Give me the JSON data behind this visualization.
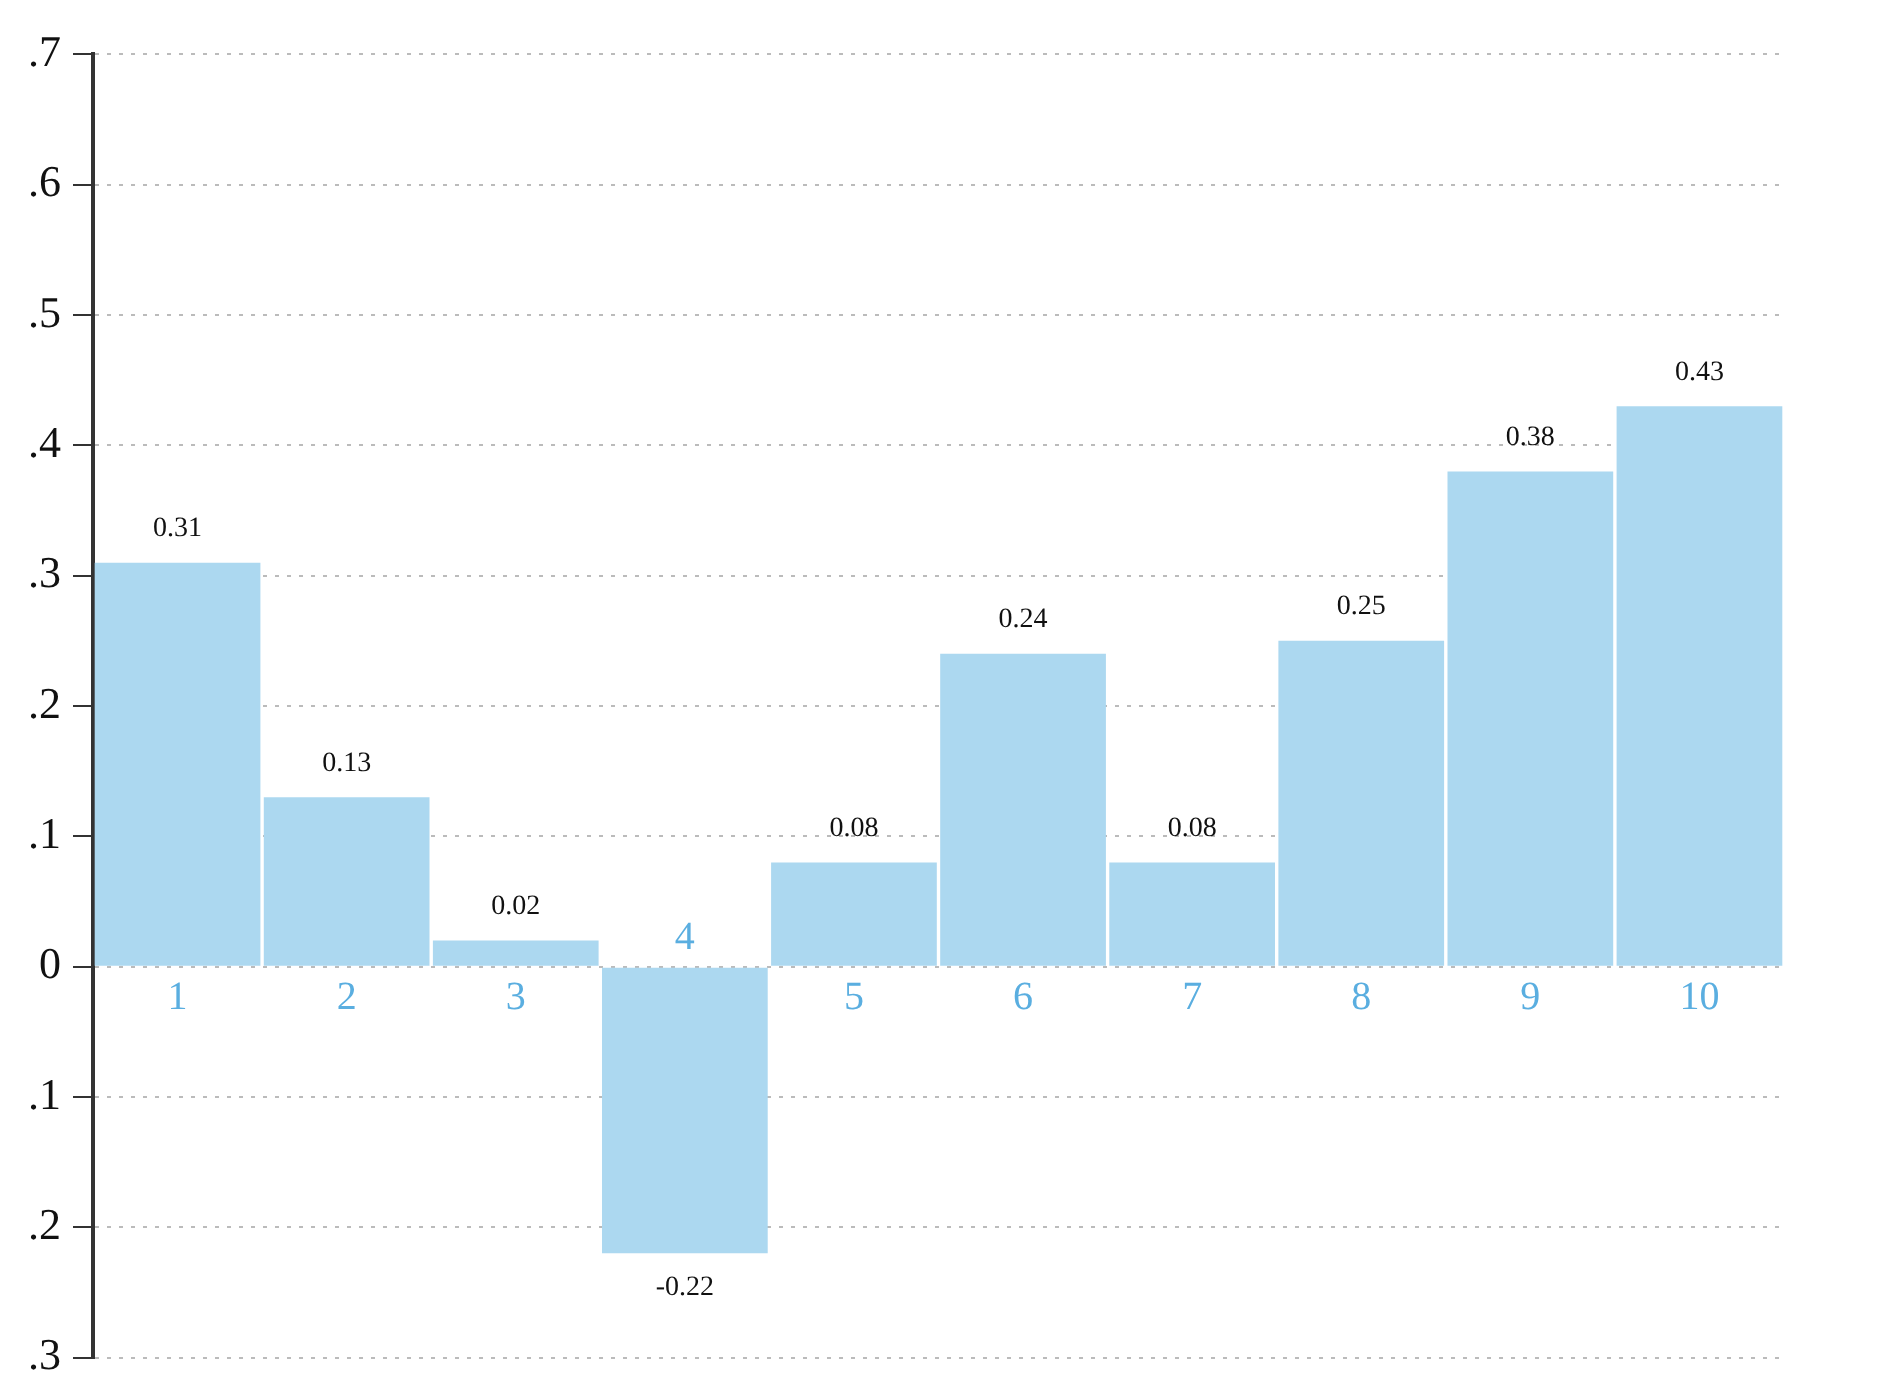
{
  "chart_data": {
    "type": "bar",
    "categories": [
      "1",
      "2",
      "3",
      "4",
      "5",
      "6",
      "7",
      "8",
      "9",
      "10"
    ],
    "values": [
      0.31,
      0.13,
      0.02,
      -0.22,
      0.08,
      0.24,
      0.08,
      0.25,
      0.38,
      0.43
    ],
    "color": "#acd8f0",
    "data_labels": true,
    "ylim": [
      -0.3,
      0.7
    ],
    "yticks": [
      {
        "value": -0.3,
        "label": ".3"
      },
      {
        "value": -0.2,
        "label": ".2"
      },
      {
        "value": -0.1,
        "label": ".1"
      },
      0,
      {
        "value": 0.1,
        "label": ".1"
      },
      {
        "value": 0.2,
        "label": ".2"
      },
      {
        "value": 0.3,
        "label": ".3"
      },
      {
        "value": 0.4,
        "label": ".4"
      },
      {
        "value": 0.5,
        "label": ".5"
      },
      {
        "value": 0.6,
        "label": ".6"
      },
      {
        "value": 0.7,
        "label": ".7"
      }
    ],
    "grid": "y",
    "legend": false
  }
}
